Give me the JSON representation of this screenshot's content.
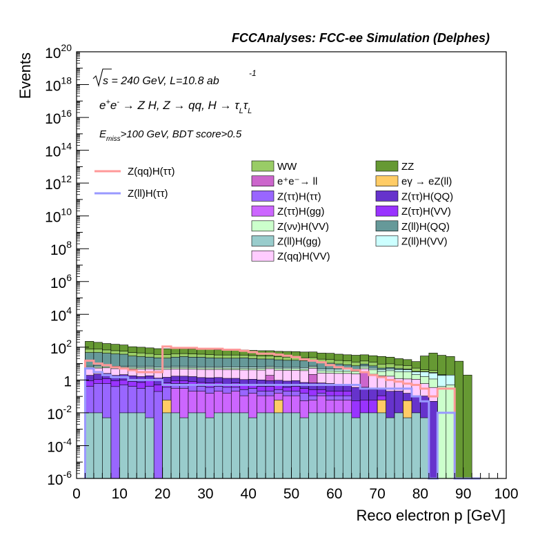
{
  "header": "FCCAnalyses: FCC-ee Simulation (Delphes)",
  "annotations": {
    "energy_lumi": "√s = 240 GeV, L=10.8 ab⁻¹",
    "process": "e⁺e⁻ → Z H, Z → qq, H → τ_L τ_L",
    "cuts": "E_miss>100 GeV, BDT score>0.5"
  },
  "colors": {
    "WW": "#99cc66",
    "ZZ": "#669933",
    "ee_ll": "#cc66cc",
    "egamma": "#ffcc66",
    "Ztautau_Htautau": "#9966ff",
    "Ztautau_HQQ": "#6633cc",
    "Ztautau_Hgg": "#cc66ff",
    "Ztautau_HVV": "#9933ff",
    "Znunu_HVV": "#ccffcc",
    "Zll_HQQ": "#669999",
    "Zll_Hgg": "#99cccc",
    "Zll_HVV": "#ccffff",
    "Zqq_HVV": "#ffccff",
    "sig_qq": "#ff9999",
    "sig_ll": "#9999ff"
  },
  "chart_data": {
    "type": "bar",
    "stacked": true,
    "log_y": true,
    "xlabel": "Reco electron p [GeV]",
    "ylabel": "Events",
    "xlim": [
      0,
      100
    ],
    "ylim": [
      1e-06,
      1e+20
    ],
    "x_ticks": [
      "0",
      "10",
      "20",
      "30",
      "40",
      "50",
      "60",
      "70",
      "80",
      "90",
      "100"
    ],
    "y_ticks": [
      {
        "base": "10",
        "exp": "-6"
      },
      {
        "base": "10",
        "exp": "-4"
      },
      {
        "base": "10",
        "exp": "-2"
      },
      {
        "base": "1",
        "exp": ""
      },
      {
        "base": "10",
        "exp": "2"
      },
      {
        "base": "10",
        "exp": "4"
      },
      {
        "base": "10",
        "exp": "6"
      },
      {
        "base": "10",
        "exp": "8"
      },
      {
        "base": "10",
        "exp": "10"
      },
      {
        "base": "10",
        "exp": "12"
      },
      {
        "base": "10",
        "exp": "14"
      },
      {
        "base": "10",
        "exp": "16"
      },
      {
        "base": "10",
        "exp": "18"
      },
      {
        "base": "10",
        "exp": "20"
      }
    ],
    "bins": [
      2,
      4,
      6,
      8,
      10,
      12,
      14,
      16,
      18,
      20,
      22,
      24,
      26,
      28,
      30,
      32,
      34,
      36,
      38,
      40,
      42,
      44,
      46,
      48,
      50,
      52,
      54,
      56,
      58,
      60,
      62,
      64,
      66,
      68,
      70,
      72,
      74,
      76,
      78,
      80,
      82,
      84,
      86,
      88,
      90,
      92
    ],
    "backgrounds": [
      {
        "key": "Zll_Hgg",
        "values": [
          0.01,
          0.01,
          0.005,
          0,
          0.01,
          0.01,
          0.01,
          0.005,
          0,
          0.01,
          0.01,
          0.005,
          0.01,
          0.01,
          0.005,
          0.01,
          0.01,
          0.01,
          0.01,
          0.005,
          0.01,
          0.01,
          0.01,
          0.01,
          0.01,
          0.005,
          0.01,
          0.01,
          0.01,
          0.01,
          0.01,
          0.005,
          0.01,
          0.01,
          0.01,
          0.005,
          0.01,
          0.005,
          0.01,
          0.005,
          0,
          0,
          0,
          0,
          0,
          0
        ]
      },
      {
        "key": "egamma",
        "values": [
          0,
          0,
          0,
          0,
          0,
          0,
          0,
          0,
          0,
          0.05,
          0,
          0,
          0,
          0,
          0,
          0,
          0,
          0,
          0,
          0,
          0,
          0,
          0.05,
          0,
          0,
          0,
          0,
          0,
          0,
          0,
          0,
          0,
          0,
          0,
          0.05,
          0,
          0,
          0.05,
          0,
          0,
          0,
          0,
          0,
          0,
          0,
          0
        ]
      },
      {
        "key": "Ztautau_Hgg",
        "values": [
          0,
          0,
          0,
          0,
          0,
          0,
          0,
          0,
          0,
          0,
          0.3,
          0.3,
          0.2,
          0.2,
          0.15,
          0.2,
          0.15,
          0.2,
          0.1,
          0.15,
          0.1,
          0.1,
          0.1,
          0.1,
          0.1,
          0.05,
          0.05,
          0.1,
          0.05,
          0.05,
          0.05,
          0,
          0,
          0,
          0,
          0,
          0,
          0,
          0,
          0,
          0,
          0,
          0,
          0,
          0,
          0
        ]
      },
      {
        "key": "Ztautau_Htautau",
        "values": [
          0.4,
          0.6,
          0.6,
          0.4,
          0.5,
          0.4,
          0.3,
          0.4,
          0.2,
          0.3,
          0.3,
          0.3,
          0.3,
          0.2,
          0.2,
          0.2,
          0.2,
          0.15,
          0.15,
          0.15,
          0.1,
          0.1,
          0.1,
          0.1,
          0.1,
          0.1,
          0.05,
          0.05,
          0.05,
          0.05,
          0.05,
          0,
          0,
          0,
          0,
          0,
          0,
          0,
          0,
          0,
          0,
          0,
          0,
          0,
          0,
          0
        ]
      },
      {
        "key": "Ztautau_HVV",
        "values": [
          0.5,
          0.5,
          0.6,
          0.5,
          0.5,
          0.4,
          0.4,
          0.5,
          0.3,
          0.3,
          0.3,
          0.3,
          0.3,
          0.3,
          0.3,
          0.3,
          0.2,
          0.3,
          0.2,
          0.2,
          0.2,
          0.2,
          0.2,
          0.15,
          0.2,
          0.15,
          0.15,
          0.1,
          0.1,
          0.1,
          0.1,
          0.05,
          0.05,
          0.05,
          0.05,
          0,
          0,
          0,
          0,
          0,
          0,
          0,
          0,
          0,
          0,
          0
        ]
      },
      {
        "key": "Ztautau_HQQ",
        "values": [
          1.0,
          1.2,
          1.3,
          1.0,
          1.1,
          1.0,
          0.9,
          0.9,
          0.8,
          0.8,
          0.8,
          0.8,
          0.8,
          0.7,
          0.7,
          0.7,
          0.7,
          0.6,
          0.6,
          0.6,
          0.6,
          0.5,
          0.5,
          0.5,
          0.5,
          0.4,
          0.4,
          0.4,
          0.4,
          0.3,
          0.3,
          0.3,
          0.3,
          0.2,
          0.2,
          0.2,
          0.2,
          0.1,
          0.1,
          0.1,
          0.05,
          0,
          0,
          0,
          0,
          0
        ]
      },
      {
        "key": "ee_ll",
        "values": [
          0,
          0,
          0,
          0,
          0,
          0,
          0,
          0,
          0,
          0,
          0,
          0,
          0,
          0,
          0,
          0,
          0,
          0,
          0,
          0,
          0,
          1.0,
          0,
          0,
          0,
          0,
          1.5,
          0,
          0,
          0,
          0,
          0,
          2.5,
          0,
          0,
          0,
          0,
          0,
          0,
          0,
          0,
          0,
          0,
          0,
          0,
          0
        ]
      },
      {
        "key": "Zqq_HVV",
        "values": [
          3,
          3,
          3,
          3,
          3,
          3,
          3,
          3,
          3,
          3,
          3,
          3,
          3,
          3,
          3,
          3,
          3,
          3,
          3,
          3,
          3,
          3,
          3,
          3,
          3,
          3,
          3,
          2,
          2,
          2,
          2,
          2,
          2,
          2,
          1.5,
          1.5,
          1,
          1,
          1,
          0.5,
          0.3,
          0,
          0,
          0,
          0,
          0
        ]
      },
      {
        "key": "Znunu_HVV",
        "values": [
          1,
          1,
          1,
          1,
          1,
          1,
          1,
          1,
          1,
          1,
          1,
          1,
          1,
          1,
          1,
          1,
          1,
          1,
          1,
          1,
          1,
          1,
          1,
          1,
          1,
          1,
          1,
          1,
          1,
          1,
          1,
          1,
          1.5,
          2,
          1.5,
          2,
          2,
          2,
          1,
          1,
          0.8,
          0.4,
          0.5,
          0,
          0,
          0
        ]
      },
      {
        "key": "Zll_HVV",
        "values": [
          1,
          1,
          1,
          1,
          1,
          1,
          1,
          1,
          1,
          1,
          1,
          1,
          1,
          1,
          1,
          1,
          1,
          1,
          1,
          1,
          1,
          1,
          1,
          1,
          1,
          1,
          1,
          1,
          1,
          1,
          1,
          1,
          1,
          1,
          1,
          1,
          1,
          1,
          1,
          1.5,
          1.5,
          1.5,
          1.5,
          0,
          0,
          0
        ]
      },
      {
        "key": "Zll_HQQ",
        "values": [
          40,
          40,
          35,
          32,
          30,
          22,
          20,
          18,
          16,
          15,
          18,
          20,
          18,
          18,
          16,
          15,
          15,
          15,
          16,
          14,
          13,
          12,
          11,
          10,
          10,
          9,
          8,
          7,
          6,
          5,
          4,
          3,
          2,
          2,
          1,
          1,
          0.8,
          0.4,
          0.2,
          0.1,
          0.2,
          0.2,
          0,
          0,
          0,
          0
        ]
      },
      {
        "key": "WW",
        "values": [
          30,
          30,
          25,
          22,
          20,
          18,
          18,
          16,
          14,
          14,
          15,
          14,
          14,
          13,
          13,
          12,
          12,
          12,
          11,
          11,
          10,
          10,
          9,
          9,
          8,
          8,
          8,
          7,
          7,
          6,
          6,
          5,
          5,
          5,
          4,
          4,
          3,
          3,
          2,
          1,
          1,
          0,
          0,
          0,
          0,
          0
        ]
      },
      {
        "key": "ZZ",
        "values": [
          150,
          120,
          100,
          90,
          80,
          60,
          55,
          50,
          45,
          45,
          45,
          40,
          40,
          38,
          38,
          36,
          35,
          35,
          35,
          33,
          32,
          32,
          30,
          30,
          30,
          28,
          28,
          25,
          25,
          22,
          20,
          20,
          20,
          18,
          18,
          15,
          12,
          10,
          8,
          25,
          40,
          30,
          25,
          14,
          2,
          0
        ]
      }
    ],
    "signals": [
      {
        "key": "sig_qq",
        "name": "Z(qq)H(ττ)",
        "values": [
          15,
          10,
          8,
          6,
          5,
          4,
          3,
          3,
          3,
          110,
          90,
          90,
          90,
          80,
          80,
          80,
          70,
          70,
          60,
          50,
          40,
          40,
          35,
          30,
          25,
          18,
          15,
          12,
          8,
          6,
          5,
          4,
          3,
          2,
          1.5,
          1,
          0.8,
          0.6,
          0.5,
          0.3,
          0.1,
          0.3,
          0.3,
          0,
          0,
          0
        ]
      },
      {
        "key": "sig_ll",
        "name": "Z(ll)H(ττ)",
        "values": [
          5,
          3,
          2,
          1.5,
          1.5,
          1,
          1,
          1,
          1,
          0.5,
          0.5,
          0.5,
          0.5,
          0.5,
          0.5,
          0.5,
          0.5,
          0.5,
          0.5,
          0.5,
          0.5,
          0.5,
          0.5,
          0.5,
          0.5,
          0.5,
          0.5,
          0.5,
          0.5,
          0.5,
          0.5,
          0.5,
          0.3,
          0.3,
          0.3,
          0.3,
          0.3,
          0.3,
          0.1,
          0.05,
          1e-06,
          0.01,
          0.01,
          0,
          0,
          0
        ]
      }
    ],
    "legend_signal": [
      {
        "key": "sig_qq",
        "label": "Z(qq)H(ττ)"
      },
      {
        "key": "sig_ll",
        "label": "Z(ll)H(ττ)"
      }
    ],
    "legend_bkg": [
      {
        "key": "WW",
        "label": "WW"
      },
      {
        "key": "ZZ",
        "label": "ZZ"
      },
      {
        "key": "ee_ll",
        "label": "e⁺e⁻→ ll"
      },
      {
        "key": "egamma",
        "label": "eγ → eZ(ll)"
      },
      {
        "key": "Ztautau_Htautau",
        "label": "Z(ττ)H(ττ)"
      },
      {
        "key": "Ztautau_HQQ",
        "label": "Z(ττ)H(QQ)"
      },
      {
        "key": "Ztautau_Hgg",
        "label": "Z(ττ)H(gg)"
      },
      {
        "key": "Ztautau_HVV",
        "label": "Z(ττ)H(VV)"
      },
      {
        "key": "Znunu_HVV",
        "label": "Z(νν)H(VV)"
      },
      {
        "key": "Zll_HQQ",
        "label": "Z(ll)H(QQ)"
      },
      {
        "key": "Zll_Hgg",
        "label": "Z(ll)H(gg)"
      },
      {
        "key": "Zll_HVV",
        "label": "Z(ll)H(VV)"
      },
      {
        "key": "Zqq_HVV",
        "label": "Z(qq)H(VV)"
      }
    ]
  }
}
